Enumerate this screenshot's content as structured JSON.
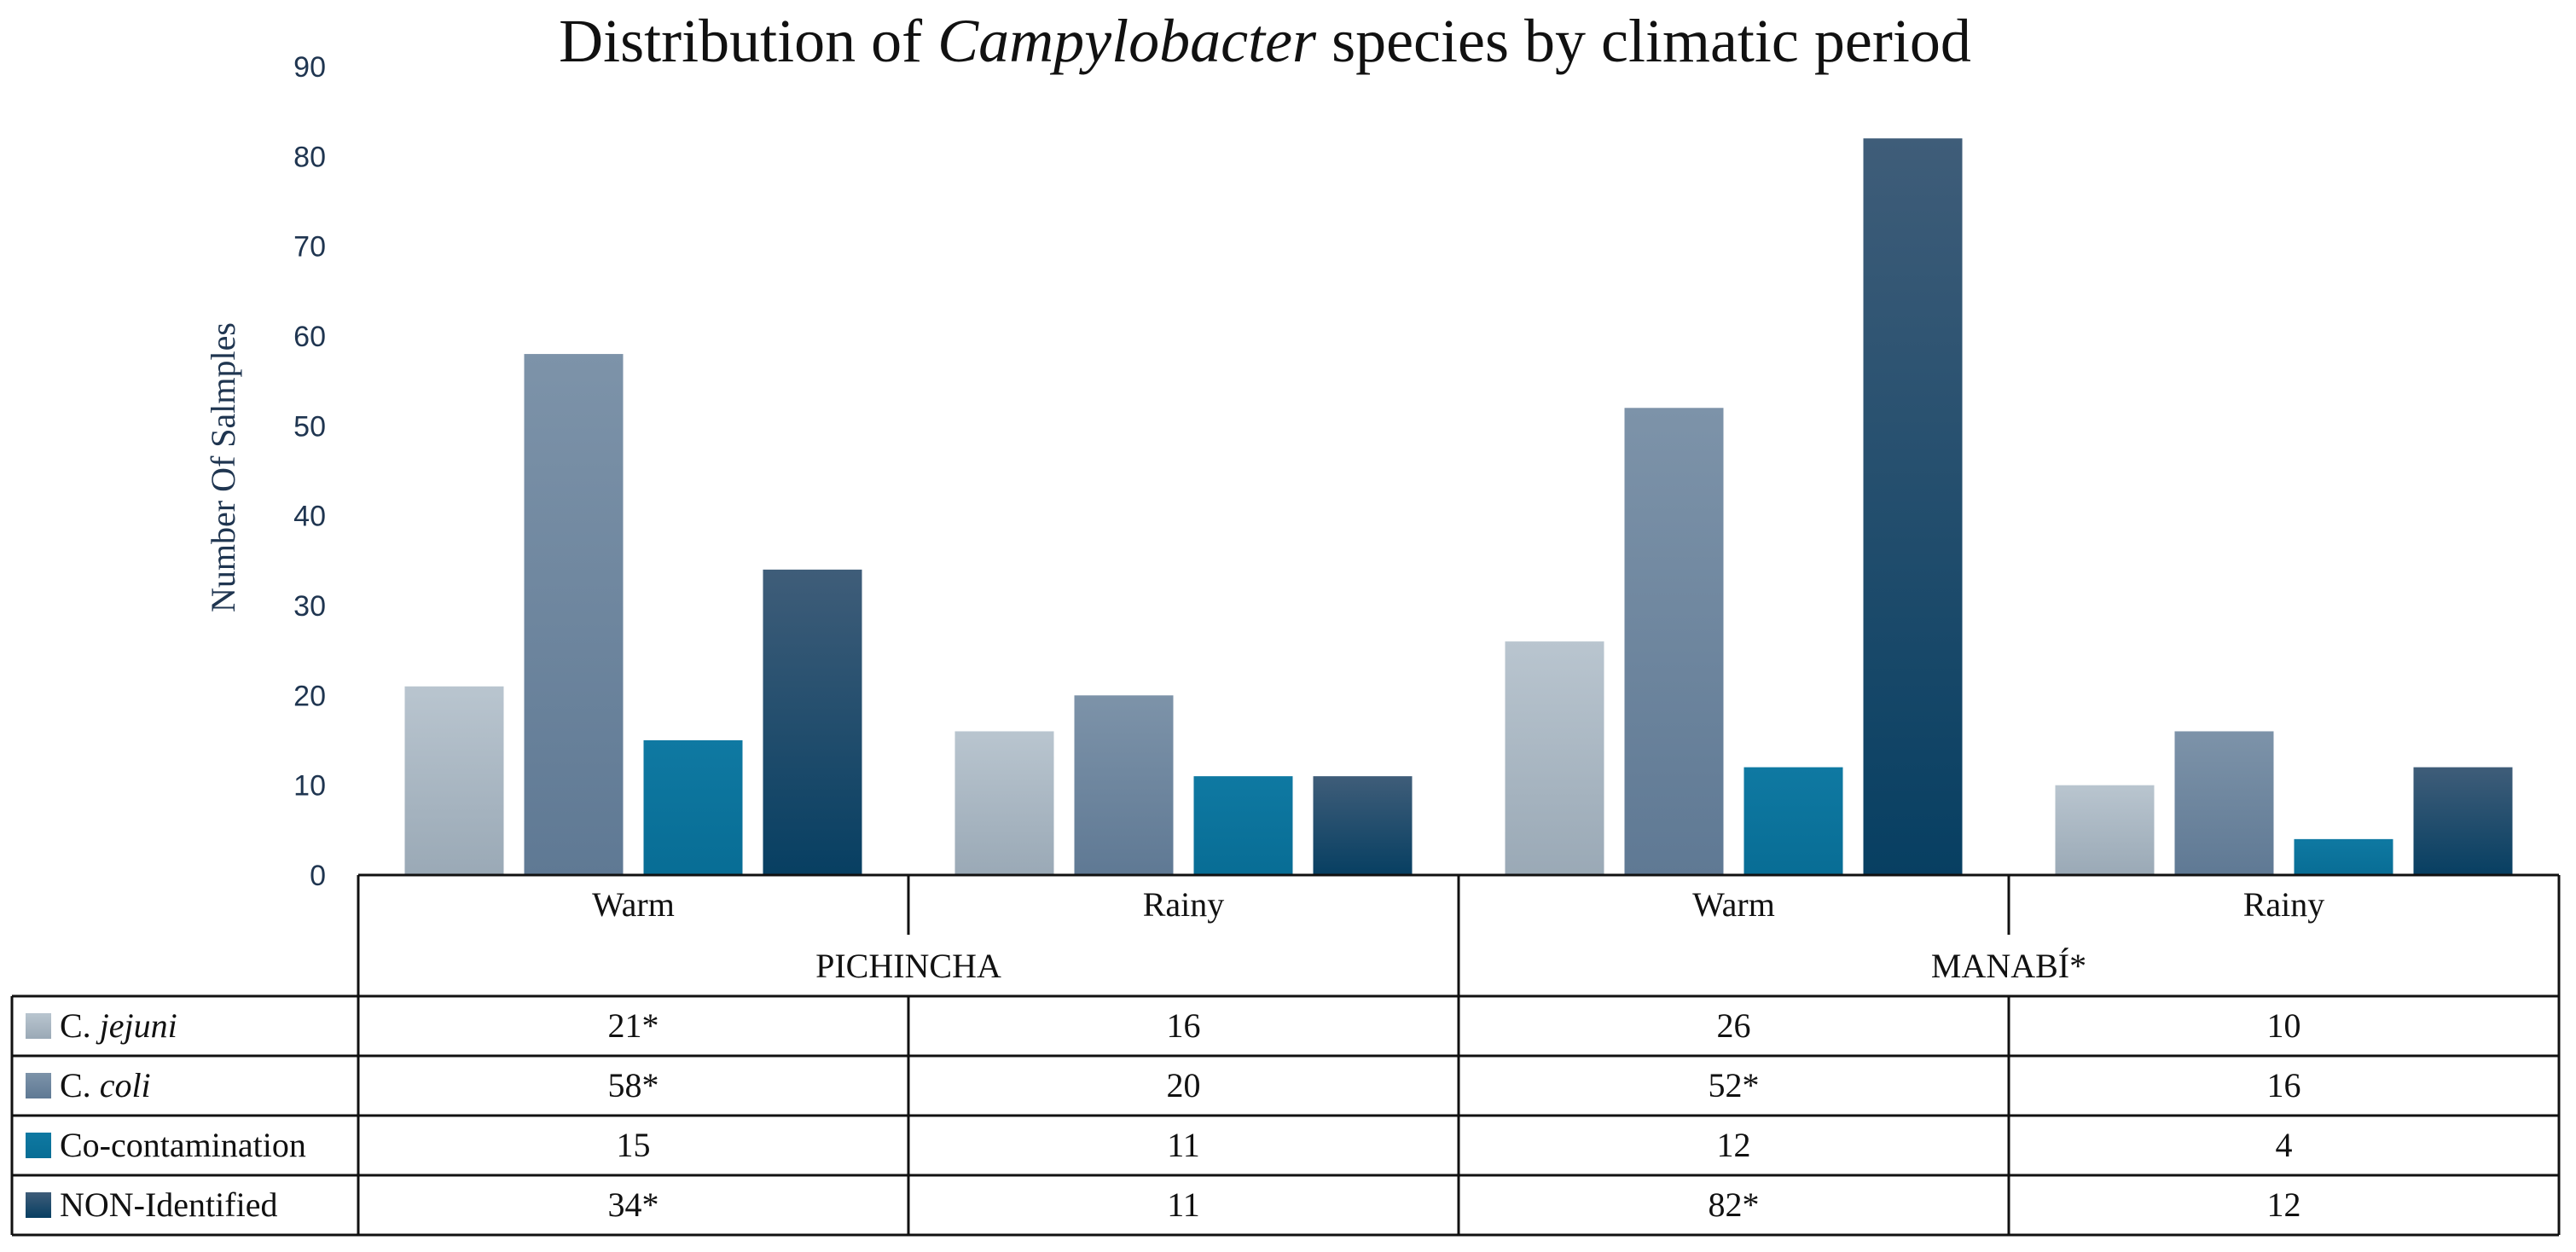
{
  "chart_data": {
    "type": "bar",
    "title": {
      "prefix": "Distribution of ",
      "italic": "Campylobacter",
      "suffix": " species by climatic period"
    },
    "ylabel": "Number Of Salmples",
    "ylim": [
      0,
      90
    ],
    "yticks": [
      0,
      10,
      20,
      30,
      40,
      50,
      60,
      70,
      80,
      90
    ],
    "groups": [
      {
        "name": "PICHINCHA",
        "categories": [
          "Warm",
          "Rainy"
        ]
      },
      {
        "name": "MANABÍ*",
        "categories": [
          "Warm",
          "Rainy"
        ]
      }
    ],
    "categories": [
      "Warm",
      "Rainy",
      "Warm",
      "Rainy"
    ],
    "series": [
      {
        "name": "C. jejuni",
        "name_parts": [
          "C. ",
          "jejuni"
        ],
        "italic_part": "jejuni",
        "color_top": "#b9c5cf",
        "color_bottom": "#9aa9b6",
        "values": [
          21,
          16,
          26,
          10
        ],
        "labels": [
          "21*",
          "16",
          "26",
          "10"
        ]
      },
      {
        "name": "C. coli",
        "name_parts": [
          "C. ",
          "coli"
        ],
        "italic_part": "coli",
        "color_top": "#7d93a9",
        "color_bottom": "#5f7994",
        "values": [
          58,
          20,
          52,
          16
        ],
        "labels": [
          "58*",
          "20",
          "52*",
          "16"
        ]
      },
      {
        "name": "Co-contamination",
        "name_parts": [
          "Co-contamination",
          ""
        ],
        "italic_part": "",
        "color_top": "#0f79a2",
        "color_bottom": "#086d95",
        "values": [
          15,
          11,
          12,
          4
        ],
        "labels": [
          "15",
          "11",
          "12",
          "4"
        ]
      },
      {
        "name": "NON-Identified",
        "name_parts": [
          "NON-Identified",
          ""
        ],
        "italic_part": "",
        "color_top": "#3f5d79",
        "color_bottom": "#073f62",
        "values": [
          34,
          11,
          82,
          12
        ],
        "labels": [
          "34*",
          "11",
          "82*",
          "12"
        ]
      }
    ]
  }
}
